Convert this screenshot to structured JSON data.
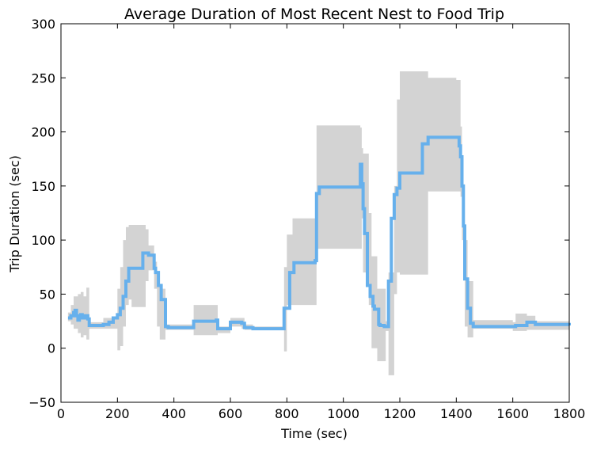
{
  "chart_data": {
    "type": "line",
    "title": "Average Duration of Most Recent Nest to Food Trip",
    "xlabel": "Time (sec)",
    "ylabel": "Trip Duration (sec)",
    "xlim": [
      0,
      1800
    ],
    "ylim": [
      -50,
      300
    ],
    "xticks": [
      0,
      200,
      400,
      600,
      800,
      1000,
      1200,
      1400,
      1600,
      1800
    ],
    "yticks": [
      -50,
      0,
      50,
      100,
      150,
      200,
      250,
      300
    ],
    "grid": false,
    "legend": "none",
    "colors": {
      "mean_line": "#66b0ec",
      "band": "#d3d3d3",
      "axes": "#000000"
    },
    "series": [
      {
        "role": "mean",
        "x": [
          25,
          35,
          45,
          50,
          55,
          60,
          65,
          70,
          75,
          85,
          95,
          100,
          150,
          170,
          185,
          200,
          210,
          220,
          230,
          240,
          250,
          260,
          290,
          310,
          330,
          335,
          345,
          355,
          365,
          370,
          380,
          460,
          470,
          550,
          555,
          600,
          640,
          650,
          680,
          780,
          790,
          810,
          825,
          900,
          905,
          915,
          1055,
          1060,
          1065,
          1070,
          1075,
          1085,
          1095,
          1105,
          1110,
          1125,
          1130,
          1145,
          1155,
          1160,
          1170,
          1180,
          1190,
          1200,
          1260,
          1280,
          1300,
          1400,
          1410,
          1415,
          1420,
          1425,
          1430,
          1440,
          1450,
          1460,
          1600,
          1610,
          1650,
          1680,
          1800
        ],
        "y": [
          28,
          30,
          33,
          35,
          30,
          26,
          29,
          31,
          28,
          30,
          27,
          21,
          22,
          24,
          28,
          31,
          37,
          48,
          62,
          74,
          74,
          74,
          88,
          86,
          74,
          70,
          58,
          45,
          45,
          20,
          19,
          19,
          25,
          26,
          18,
          24,
          23,
          19,
          18,
          18,
          37,
          70,
          79,
          81,
          143,
          149,
          149,
          170,
          152,
          129,
          106,
          58,
          48,
          39,
          36,
          22,
          21,
          20,
          20,
          62,
          120,
          142,
          148,
          162,
          162,
          189,
          195,
          195,
          187,
          177,
          150,
          113,
          64,
          37,
          23,
          20,
          20,
          21,
          24,
          22,
          21
        ]
      },
      {
        "role": "band-upper",
        "x": [
          25,
          35,
          45,
          60,
          70,
          80,
          90,
          100,
          150,
          200,
          210,
          220,
          230,
          240,
          250,
          300,
          310,
          330,
          340,
          350,
          370,
          460,
          470,
          550,
          555,
          600,
          640,
          650,
          680,
          780,
          790,
          800,
          820,
          900,
          905,
          1060,
          1065,
          1070,
          1090,
          1100,
          1120,
          1150,
          1160,
          1180,
          1190,
          1200,
          1300,
          1400,
          1415,
          1420,
          1430,
          1440,
          1460,
          1600,
          1610,
          1650,
          1680,
          1800
        ],
        "y": [
          33,
          40,
          48,
          50,
          52,
          48,
          56,
          24,
          28,
          55,
          75,
          100,
          112,
          114,
          114,
          110,
          95,
          80,
          70,
          55,
          22,
          22,
          40,
          40,
          20,
          28,
          28,
          22,
          20,
          20,
          75,
          105,
          120,
          120,
          206,
          204,
          185,
          180,
          125,
          85,
          55,
          25,
          70,
          150,
          230,
          256,
          250,
          248,
          205,
          150,
          100,
          62,
          26,
          24,
          32,
          30,
          25,
          25
        ]
      },
      {
        "role": "band-lower",
        "x": [
          25,
          35,
          45,
          60,
          70,
          80,
          90,
          100,
          150,
          200,
          210,
          220,
          230,
          240,
          250,
          300,
          310,
          330,
          340,
          350,
          370,
          460,
          470,
          550,
          555,
          600,
          640,
          650,
          680,
          780,
          790,
          800,
          820,
          900,
          905,
          1060,
          1065,
          1070,
          1090,
          1100,
          1120,
          1150,
          1160,
          1180,
          1190,
          1200,
          1300,
          1400,
          1415,
          1420,
          1430,
          1440,
          1460,
          1600,
          1610,
          1650,
          1680,
          1800
        ],
        "y": [
          25,
          22,
          18,
          14,
          10,
          12,
          8,
          18,
          18,
          -2,
          2,
          20,
          40,
          45,
          38,
          62,
          72,
          55,
          20,
          8,
          17,
          17,
          12,
          12,
          14,
          20,
          18,
          17,
          17,
          17,
          -3,
          40,
          40,
          40,
          92,
          92,
          120,
          70,
          40,
          0,
          -12,
          16,
          -25,
          50,
          70,
          68,
          145,
          145,
          140,
          100,
          20,
          10,
          18,
          16,
          16,
          17,
          17,
          17
        ]
      }
    ]
  }
}
